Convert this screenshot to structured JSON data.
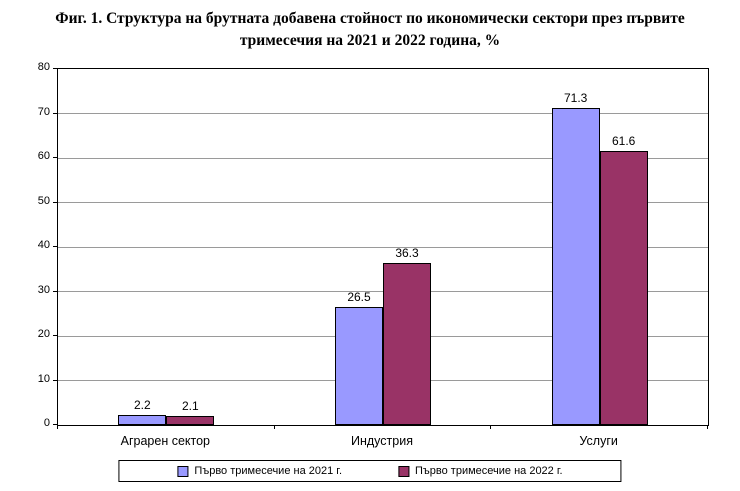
{
  "title": {
    "line1": "Фиг. 1. Структура на брутната добавена стойност по икономически сектори през първите",
    "line2": "тримесечия на 2021 и 2022 година, %"
  },
  "chart_data": {
    "type": "bar",
    "categories": [
      "Аграрен сектор",
      "Индустрия",
      "Услуги"
    ],
    "series": [
      {
        "name": "Първо тримесечие на 2021 г.",
        "color": "#9999FF",
        "values": [
          2.2,
          26.5,
          71.3
        ]
      },
      {
        "name": "Първо тримесечие на 2022 г.",
        "color": "#993366",
        "values": [
          2.1,
          36.3,
          61.6
        ]
      }
    ],
    "title": "Фиг. 1. Структура на брутната добавена стойност по икономически сектори през първите тримесечия на 2021 и 2022 година, %",
    "xlabel": "",
    "ylabel": "",
    "ylim": [
      0,
      80
    ],
    "ytick_step": 10,
    "grid": true,
    "legend_position": "bottom",
    "bar_border_color": "#000000",
    "gridline_color": "#9a9a9a"
  }
}
